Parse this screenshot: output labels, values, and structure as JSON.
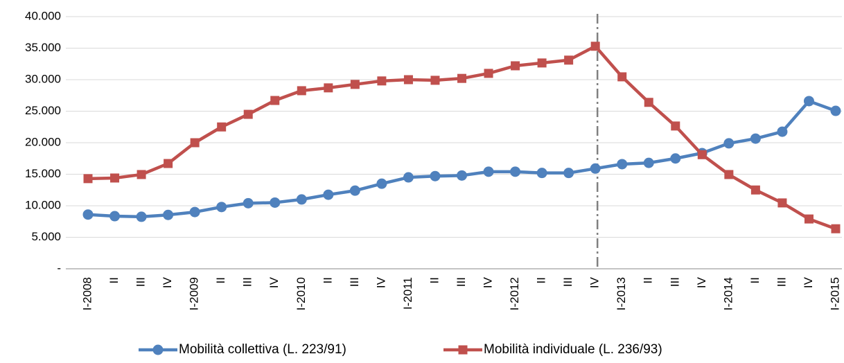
{
  "chart_data": {
    "type": "line",
    "categories": [
      "I-2008",
      "II",
      "III",
      "IV",
      "I-2009",
      "II",
      "III",
      "IV",
      "I-2010",
      "II",
      "III",
      "IV",
      "I-2011",
      "II",
      "III",
      "IV",
      "I-2012",
      "II",
      "III",
      "IV",
      "I-2013",
      "II",
      "III",
      "IV",
      "I-2014",
      "II",
      "III",
      "IV",
      "I-2015"
    ],
    "series": [
      {
        "name": "Mobilità collettiva (L. 223/91)",
        "color": "#4f81bd",
        "marker": "circle",
        "values": [
          8600,
          8350,
          8250,
          8550,
          9000,
          9800,
          10400,
          10500,
          11000,
          11750,
          12400,
          13500,
          14500,
          14700,
          14800,
          15400,
          15400,
          15200,
          15200,
          15900,
          16600,
          16800,
          17500,
          18350,
          19900,
          20650,
          21750,
          26600,
          25050
        ]
      },
      {
        "name": "Mobilità individuale (L. 236/93)",
        "color": "#c0504d",
        "marker": "square",
        "values": [
          14300,
          14400,
          14950,
          16700,
          20000,
          22500,
          24500,
          26700,
          28250,
          28700,
          29250,
          29800,
          30000,
          29900,
          30200,
          31000,
          32200,
          32650,
          33100,
          35300,
          30450,
          26400,
          22650,
          18100,
          14950,
          12500,
          10450,
          7900,
          6350
        ]
      }
    ],
    "ylim": [
      0,
      40000
    ],
    "yticks": [
      {
        "value": 0,
        "label": "-"
      },
      {
        "value": 5000,
        "label": "5.000"
      },
      {
        "value": 10000,
        "label": "10.000"
      },
      {
        "value": 15000,
        "label": "15.000"
      },
      {
        "value": 20000,
        "label": "20.000"
      },
      {
        "value": 25000,
        "label": "25.000"
      },
      {
        "value": 30000,
        "label": "30.000"
      },
      {
        "value": 35000,
        "label": "35.000"
      },
      {
        "value": 40000,
        "label": "40.000"
      }
    ],
    "grid": true,
    "legend": "bottom",
    "vline_category": 19
  }
}
